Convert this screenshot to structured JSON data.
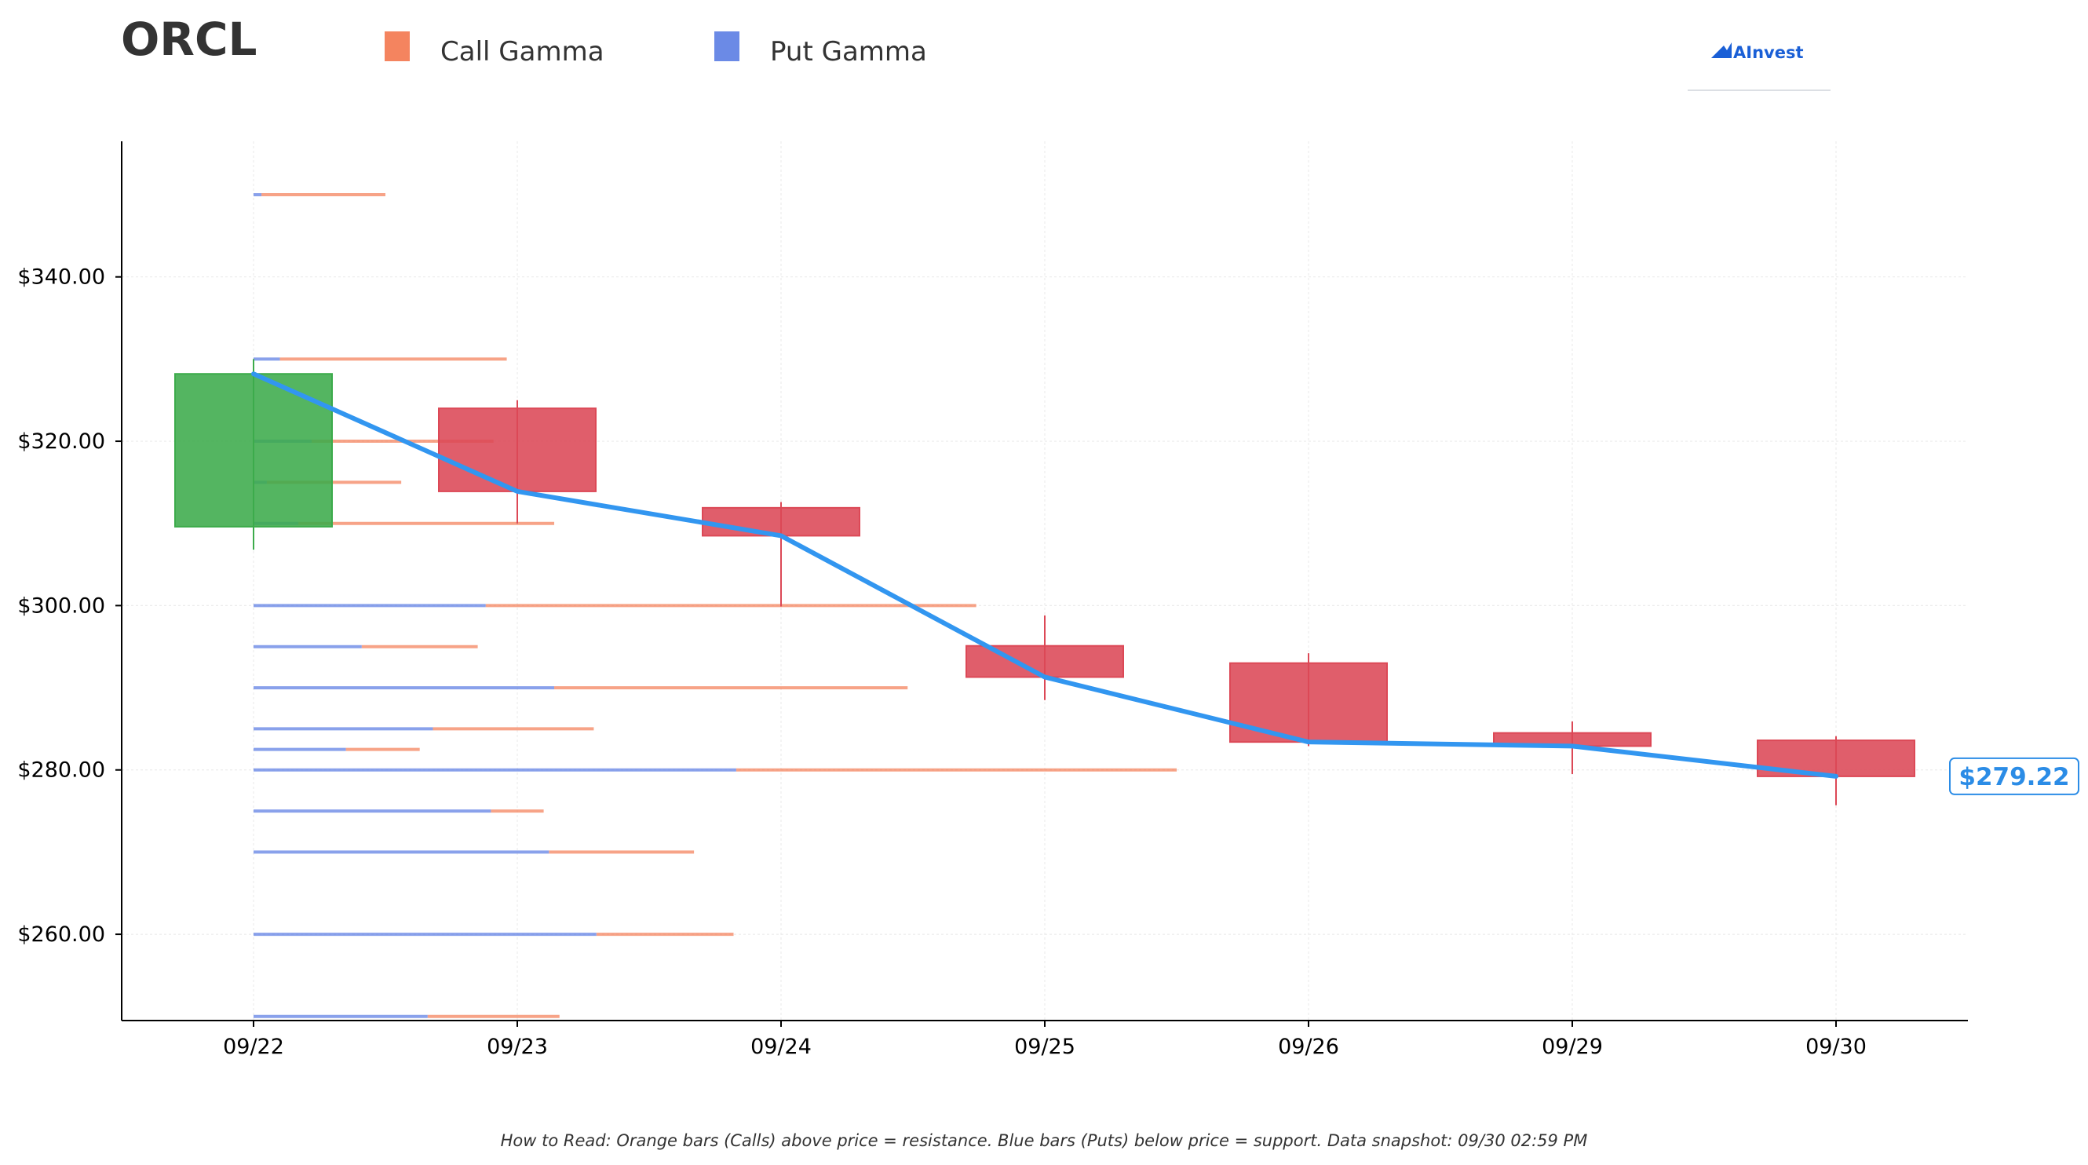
{
  "ticker": "ORCL",
  "logo_text": "AInvest",
  "footer": "How to Read: Orange bars (Calls) above price = resistance. Blue bars (Puts) below price = support. Data snapshot: 09/30 02:59 PM",
  "colors": {
    "call": "#f4845f",
    "put": "#6b8ae6",
    "up_candle": "#3cab4b",
    "down_candle": "#dc4856",
    "price_line": "#3296f0"
  },
  "chart_data": {
    "type": "candlestick",
    "title": "ORCL",
    "legend": [
      {
        "name": "Call Gamma",
        "color": "#f4845f"
      },
      {
        "name": "Put Gamma",
        "color": "#6b8ae6"
      }
    ],
    "legend_position": "top",
    "x_categories": [
      "09/22",
      "09/23",
      "09/24",
      "09/25",
      "09/26",
      "09/29",
      "09/30"
    ],
    "y_ticks": [
      260,
      280,
      300,
      320,
      340
    ],
    "y_tick_labels": [
      "$260.00",
      "$280.00",
      "$300.00",
      "$320.00",
      "$340.00"
    ],
    "ylim": [
      249.5,
      356.5
    ],
    "grid": true,
    "candles": [
      {
        "date": "09/22",
        "open": 309.6,
        "high": 330.0,
        "low": 306.8,
        "close": 328.2
      },
      {
        "date": "09/23",
        "open": 324.0,
        "high": 325.0,
        "low": 310.0,
        "close": 313.9
      },
      {
        "date": "09/24",
        "open": 311.9,
        "high": 312.6,
        "low": 299.9,
        "close": 308.5
      },
      {
        "date": "09/25",
        "open": 295.1,
        "high": 298.8,
        "low": 288.5,
        "close": 291.3
      },
      {
        "date": "09/26",
        "open": 293.0,
        "high": 294.2,
        "low": 282.9,
        "close": 283.4
      },
      {
        "date": "09/29",
        "open": 284.5,
        "high": 285.9,
        "low": 279.5,
        "close": 282.9
      },
      {
        "date": "09/30",
        "open": 283.6,
        "high": 284.1,
        "low": 275.7,
        "close": 279.22
      }
    ],
    "price_line": [
      328.2,
      313.9,
      308.5,
      291.3,
      283.4,
      282.9,
      279.22
    ],
    "last_price_label": "$279.22",
    "gamma_units": "x-axis days from 09/22",
    "gamma_levels": [
      {
        "strike": 350,
        "put": 0.03,
        "call": 0.5
      },
      {
        "strike": 330,
        "put": 0.1,
        "call": 0.96
      },
      {
        "strike": 320,
        "put": 0.22,
        "call": 0.91
      },
      {
        "strike": 315,
        "put": 0.05,
        "call": 0.56
      },
      {
        "strike": 310,
        "put": 0.17,
        "call": 1.14
      },
      {
        "strike": 300,
        "put": 0.88,
        "call": 2.74
      },
      {
        "strike": 295,
        "put": 0.41,
        "call": 0.85
      },
      {
        "strike": 290,
        "put": 1.14,
        "call": 2.48
      },
      {
        "strike": 285,
        "put": 0.68,
        "call": 1.29
      },
      {
        "strike": 282.5,
        "put": 0.35,
        "call": 0.63
      },
      {
        "strike": 280,
        "put": 1.83,
        "call": 3.5
      },
      {
        "strike": 275,
        "put": 0.9,
        "call": 1.1
      },
      {
        "strike": 270,
        "put": 1.12,
        "call": 1.67
      },
      {
        "strike": 260,
        "put": 1.3,
        "call": 1.82
      },
      {
        "strike": 250,
        "put": 0.66,
        "call": 1.16
      }
    ]
  }
}
